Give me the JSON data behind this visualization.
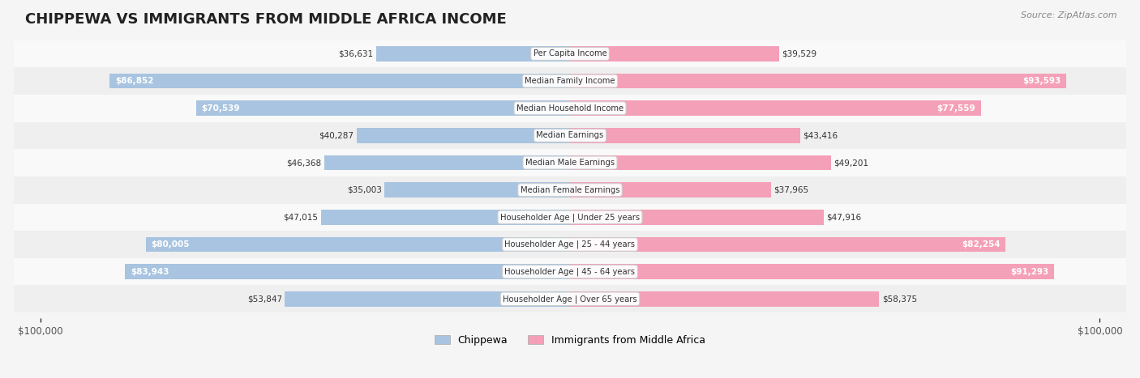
{
  "title": "CHIPPEWA VS IMMIGRANTS FROM MIDDLE AFRICA INCOME",
  "source": "Source: ZipAtlas.com",
  "categories": [
    "Per Capita Income",
    "Median Family Income",
    "Median Household Income",
    "Median Earnings",
    "Median Male Earnings",
    "Median Female Earnings",
    "Householder Age | Under 25 years",
    "Householder Age | 25 - 44 years",
    "Householder Age | 45 - 64 years",
    "Householder Age | Over 65 years"
  ],
  "chippewa_values": [
    36631,
    86852,
    70539,
    40287,
    46368,
    35003,
    47015,
    80005,
    83943,
    53847
  ],
  "immigrant_values": [
    39529,
    93593,
    77559,
    43416,
    49201,
    37965,
    47916,
    82254,
    91293,
    58375
  ],
  "chippewa_labels": [
    "$36,631",
    "$86,852",
    "$70,539",
    "$40,287",
    "$46,368",
    "$35,003",
    "$47,015",
    "$80,005",
    "$83,943",
    "$53,847"
  ],
  "immigrant_labels": [
    "$39,529",
    "$93,593",
    "$77,559",
    "$43,416",
    "$49,201",
    "$37,965",
    "$47,916",
    "$82,254",
    "$91,293",
    "$58,375"
  ],
  "chippewa_color": "#a8c4e0",
  "immigrant_color": "#f4a0b8",
  "chippewa_color_dark": "#6fa8d8",
  "immigrant_color_dark": "#ee7fa8",
  "max_value": 100000,
  "legend_chippewa": "Chippewa",
  "legend_immigrant": "Immigrants from Middle Africa",
  "bar_height": 0.55,
  "background_color": "#f5f5f5",
  "row_bg_light": "#f9f9f9",
  "row_bg_dark": "#efefef"
}
